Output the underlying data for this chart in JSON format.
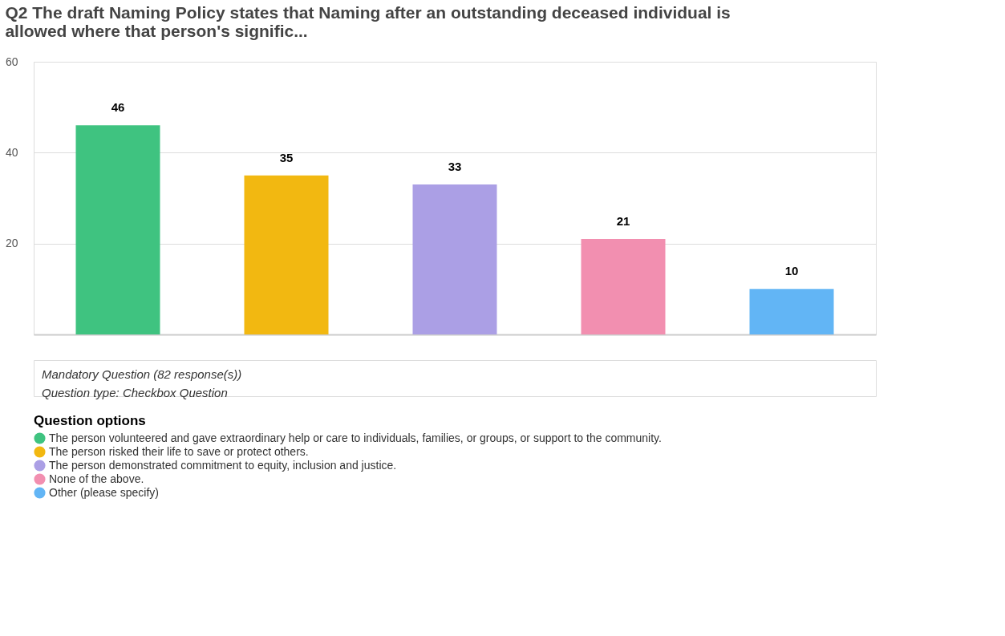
{
  "chart_data": {
    "type": "bar",
    "title": "Q2 The draft Naming Policy states that Naming after an outstanding deceased individual is allowed where that person's signific...",
    "categories": [
      null,
      null,
      null,
      null,
      null
    ],
    "series": [
      {
        "name": "The person volunteered and gave extraordinary help or care to individuals, families, or groups, or support to the community.",
        "color": "#3fc380",
        "values": [
          46,
          null,
          null,
          null,
          null
        ]
      },
      {
        "name": "The person risked their life to save or protect others.",
        "color": "#f2b811",
        "values": [
          null,
          35,
          null,
          null,
          null
        ]
      },
      {
        "name": "The person demonstrated commitment to equity, inclusion and justice.",
        "color": "#ab9fe5",
        "values": [
          null,
          null,
          33,
          null,
          null
        ]
      },
      {
        "name": "None of the above.",
        "color": "#f28fb0",
        "values": [
          null,
          null,
          null,
          21,
          null
        ]
      },
      {
        "name": "Other (please specify)",
        "color": "#62b5f5",
        "values": [
          null,
          null,
          null,
          null,
          10
        ]
      }
    ],
    "legend_title": "Question options",
    "legend": "bottom",
    "ylim": [
      0,
      60
    ],
    "yticks": [
      20,
      40,
      60
    ],
    "grid": "y",
    "tick_labels": "y",
    "data_labels": true,
    "annotations": [
      "Mandatory Question (82 response(s))",
      "Question type: Checkbox Question"
    ]
  }
}
